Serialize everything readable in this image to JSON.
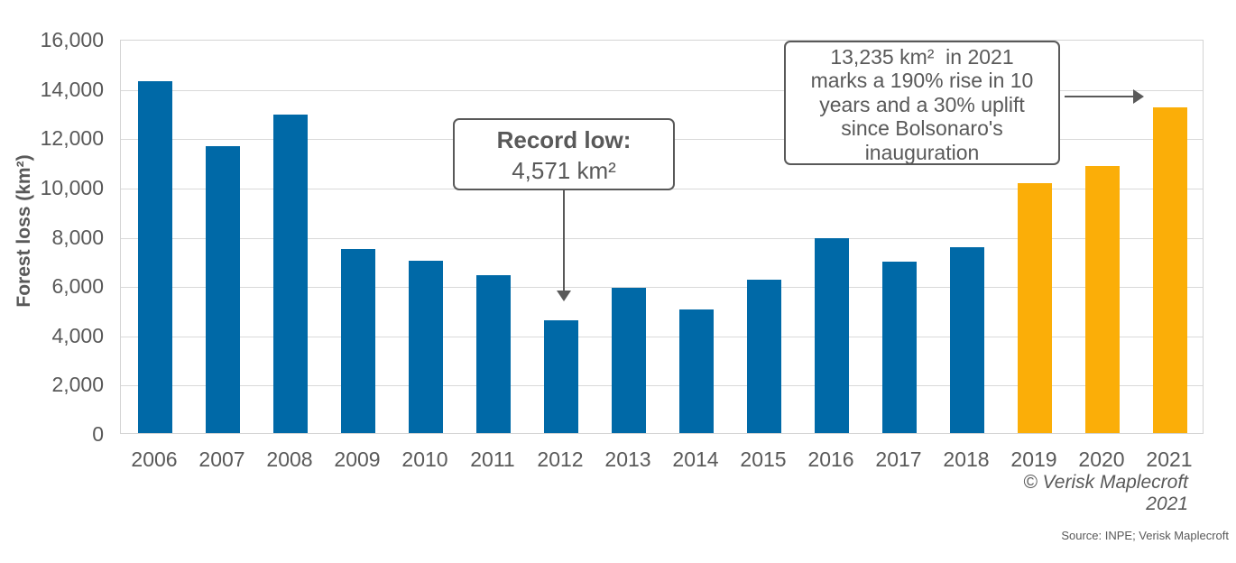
{
  "chart_data": {
    "type": "bar",
    "title": "",
    "xlabel": "",
    "ylabel": "Forest loss (km²)",
    "categories": [
      "2006",
      "2007",
      "2008",
      "2009",
      "2010",
      "2011",
      "2012",
      "2013",
      "2014",
      "2015",
      "2016",
      "2017",
      "2018",
      "2019",
      "2020",
      "2021"
    ],
    "values": [
      14286,
      11651,
      12911,
      7464,
      7000,
      6418,
      4571,
      5891,
      5012,
      6207,
      7893,
      6947,
      7536,
      10129,
      10851,
      13235
    ],
    "ylim": [
      0,
      16000
    ],
    "ytick_step": 2000,
    "grid": "horizontal",
    "legend": "none",
    "bar_color_default": "#0069A7",
    "bar_color_highlight": "#FBAE08",
    "highlight_categories": [
      "2019",
      "2020",
      "2021"
    ]
  },
  "annotations": {
    "record_low": {
      "title": "Record low:",
      "value": "4,571 km²",
      "target_year": "2012"
    },
    "rise_2021": {
      "lines": [
        "13,235 km²  in 2021",
        "marks a 190% rise in 10",
        "years and a 30% uplift",
        "since Bolsonaro's",
        "inauguration"
      ],
      "target_year": "2021"
    }
  },
  "footer": {
    "copyright_line1": "© Verisk Maplecroft",
    "copyright_line2": "2021",
    "source": "Source: INPE; Verisk Maplecroft"
  },
  "colors": {
    "bar_blue": "#0069A7",
    "bar_orange": "#FBAE08",
    "text_gray": "#595959",
    "gridline": "#D9D9D9",
    "background": "#FFFFFF"
  }
}
